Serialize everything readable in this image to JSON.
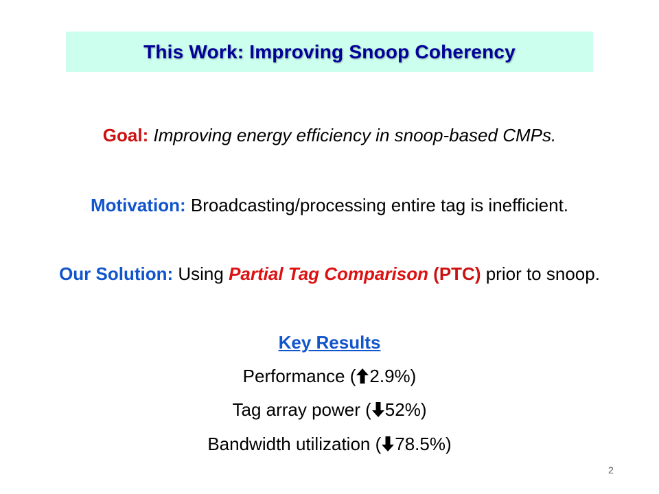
{
  "title": "This Work:  Improving Snoop Coherency",
  "goal": {
    "label": "Goal:",
    "text": " Improving energy efficiency in snoop-based CMPs."
  },
  "motivation": {
    "label": "Motivation:",
    "text": " Broadcasting/processing entire tag is inefficient."
  },
  "solution": {
    "label": "Our Solution:",
    "text_before": " Using ",
    "highlight": "Partial Tag Comparison",
    "abbr": " (PTC)",
    "text_after": " prior to snoop."
  },
  "key_results": {
    "heading": "Key Results",
    "items": [
      {
        "prefix": "Performance (",
        "direction_icon": "arrow-up-icon",
        "value": "2.9%",
        "suffix": ")"
      },
      {
        "prefix": "Tag array power (",
        "direction_icon": "arrow-down-icon",
        "value": "52%",
        "suffix": ")"
      },
      {
        "prefix": "Bandwidth utilization (",
        "direction_icon": "arrow-down-icon",
        "value": "78.5%",
        "suffix": ")"
      }
    ]
  },
  "page_number": "2",
  "colors": {
    "title_bg": "#ccffee",
    "title_text": "#000099",
    "label_red": "#cc1111",
    "label_blue": "#1155cc"
  }
}
